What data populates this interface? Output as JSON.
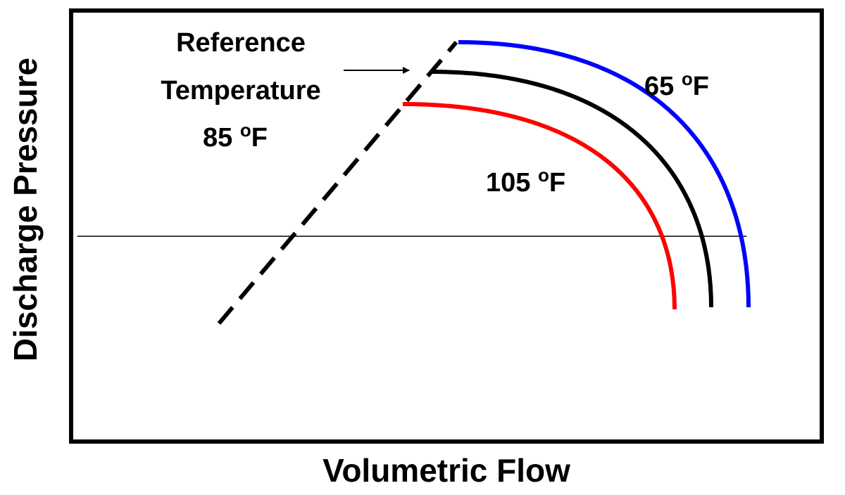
{
  "chart_data": {
    "type": "line",
    "title": "",
    "xlabel": "Volumetric Flow",
    "ylabel": "Discharge Pressure",
    "x_ticks_shown": false,
    "y_ticks_shown": false,
    "grid": false,
    "legend": "none",
    "colors": {
      "curve_65": "#0000ff",
      "curve_85": "#000000",
      "curve_105": "#ff0000",
      "surge_line": "#000000",
      "reference_line": "#000000",
      "frame": "#000000"
    },
    "annotations": {
      "reference_lines": [
        "Reference",
        "Temperature"
      ],
      "label_85": {
        "num": "85 ",
        "sup": "o",
        "unit": "F"
      },
      "label_65": {
        "num": "65 ",
        "sup": "o",
        "unit": "F"
      },
      "label_105": {
        "num": "105 ",
        "sup": "o",
        "unit": "F"
      }
    }
  }
}
